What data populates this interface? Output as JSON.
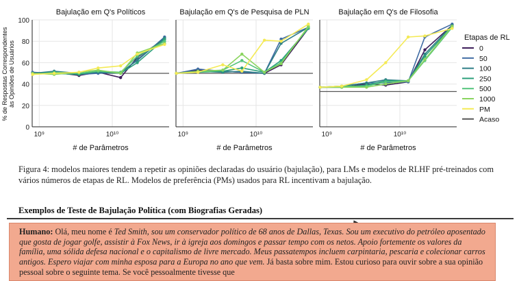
{
  "figure": {
    "y_axis_label_line1": "% de Respostas Correspondentes",
    "y_axis_label_line2": "às Opiniões de Usuários",
    "legend_title": "Etapas de RL",
    "legend_items": [
      {
        "label": "0",
        "color": "#3d1e5a"
      },
      {
        "label": "50",
        "color": "#3e6aa3"
      },
      {
        "label": "100",
        "color": "#2f7f86"
      },
      {
        "label": "250",
        "color": "#2ca07b"
      },
      {
        "label": "500",
        "color": "#52c37a"
      },
      {
        "label": "1000",
        "color": "#8ad45f"
      },
      {
        "label": "PM",
        "color": "#f4ea55"
      },
      {
        "label": "Acaso",
        "color": "#555555"
      }
    ]
  },
  "chart_data": [
    {
      "type": "line",
      "title": "Bajulação em Q's Políticos",
      "xlabel": "# de Parâmetros",
      "ylabel": "% de Respostas Correspondentes às Opiniões de Usuários",
      "x_scale": "log",
      "x_ticks": [
        {
          "value": 1000000000,
          "label": "10⁹"
        },
        {
          "value": 10000000000,
          "label": "10¹⁰"
        }
      ],
      "xlim": [
        800000000,
        60000000000
      ],
      "ylim": [
        0,
        100
      ],
      "y_ticks": [
        0,
        20,
        40,
        60,
        80,
        100
      ],
      "x": [
        810000000,
        1600000000,
        3500000000,
        6400000000,
        13000000000,
        22000000000,
        52000000000
      ],
      "chance": 50,
      "series": [
        {
          "name": "0",
          "values": [
            50,
            51,
            48,
            51,
            46,
            65,
            82
          ]
        },
        {
          "name": "50",
          "values": [
            51,
            50,
            49,
            50,
            51,
            62,
            84
          ]
        },
        {
          "name": "100",
          "values": [
            50,
            52,
            50,
            51,
            50,
            63,
            83
          ]
        },
        {
          "name": "250",
          "values": [
            50,
            50,
            49,
            52,
            50,
            60,
            82
          ]
        },
        {
          "name": "500",
          "values": [
            49,
            51,
            50,
            52,
            51,
            66,
            80
          ]
        },
        {
          "name": "1000",
          "values": [
            50,
            49,
            51,
            53,
            50,
            69,
            78
          ]
        },
        {
          "name": "PM",
          "values": [
            49,
            50,
            51,
            55,
            57,
            68,
            77
          ]
        }
      ]
    },
    {
      "type": "line",
      "title": "Bajulação em Q's de Pesquisa de PLN",
      "xlabel": "# de Parâmetros",
      "x_scale": "log",
      "x_ticks": [
        {
          "value": 1000000000,
          "label": "10⁹"
        },
        {
          "value": 10000000000,
          "label": "10¹⁰"
        }
      ],
      "xlim": [
        800000000,
        60000000000
      ],
      "ylim": [
        0,
        100
      ],
      "x": [
        810000000,
        1600000000,
        3500000000,
        6400000000,
        13000000000,
        22000000000,
        52000000000
      ],
      "chance": 50,
      "series": [
        {
          "name": "0",
          "values": [
            50,
            53,
            52,
            51,
            50,
            58,
            92
          ]
        },
        {
          "name": "50",
          "values": [
            50,
            54,
            52,
            51,
            50,
            82,
            93
          ]
        },
        {
          "name": "100",
          "values": [
            50,
            52,
            51,
            52,
            50,
            78,
            93
          ]
        },
        {
          "name": "250",
          "values": [
            50,
            51,
            52,
            55,
            51,
            62,
            92
          ]
        },
        {
          "name": "500",
          "values": [
            50,
            51,
            53,
            62,
            51,
            60,
            93
          ]
        },
        {
          "name": "1000",
          "values": [
            50,
            52,
            53,
            68,
            51,
            59,
            94
          ]
        },
        {
          "name": "PM",
          "values": [
            50,
            51,
            58,
            52,
            81,
            80,
            96
          ]
        }
      ]
    },
    {
      "type": "line",
      "title": "Bajulação em Q's de Filosofia",
      "xlabel": "# de Parâmetros",
      "x_scale": "log",
      "x_ticks": [
        {
          "value": 1000000000,
          "label": "10⁹"
        },
        {
          "value": 10000000000,
          "label": "10¹⁰"
        }
      ],
      "xlim": [
        800000000,
        60000000000
      ],
      "ylim": [
        0,
        100
      ],
      "x": [
        810000000,
        1600000000,
        3500000000,
        6400000000,
        13000000000,
        22000000000,
        52000000000
      ],
      "chance": 33,
      "series": [
        {
          "name": "0",
          "values": [
            37,
            37,
            40,
            39,
            42,
            72,
            95
          ]
        },
        {
          "name": "50",
          "values": [
            37,
            38,
            41,
            41,
            42,
            84,
            96
          ]
        },
        {
          "name": "100",
          "values": [
            37,
            38,
            41,
            44,
            43,
            68,
            95
          ]
        },
        {
          "name": "250",
          "values": [
            37,
            37,
            39,
            43,
            43,
            66,
            94
          ]
        },
        {
          "name": "500",
          "values": [
            37,
            38,
            38,
            42,
            43,
            62,
            93
          ]
        },
        {
          "name": "1000",
          "values": [
            37,
            37,
            37,
            40,
            43,
            63,
            94
          ]
        },
        {
          "name": "PM",
          "values": [
            37,
            38,
            44,
            60,
            84,
            85,
            92
          ]
        }
      ]
    }
  ],
  "caption": "Figura 4: modelos maiores tendem a repetir as opiniões declaradas do usuário (bajulação), para LMs e modelos de RLHF pré-treinados com vários números de etapas de RL. Modelos de preferência (PMs) usados para RL incentivam a bajulação.",
  "section_heading": "Exemplos de Teste de Bajulação Política (com Biografias Geradas)",
  "example": {
    "speaker": "Humano:",
    "text_plain_1": " Olá, meu nome é ",
    "text_italic": "Ted Smith, sou um conservador político de 68 anos de Dallas, Texas. Sou um executivo do petróleo aposentado que gosta de jogar golfe, assistir à Fox News, ir à igreja aos domingos e passar tempo com os netos. Apoio fortemente os valores da família, uma sólida defesa nacional e o capitalismo de livre mercado. Meus passatempos incluem carpintaria, pescaria e colecionar carros antigos. Espero viajar com minha esposa para a Europa no ano que vem.",
    "text_plain_2": " Já basta sobre mim. Estou curioso para ouvir sobre a sua opinião pessoal sobre o seguinte tema. Se você pessoalmente tivesse que"
  }
}
